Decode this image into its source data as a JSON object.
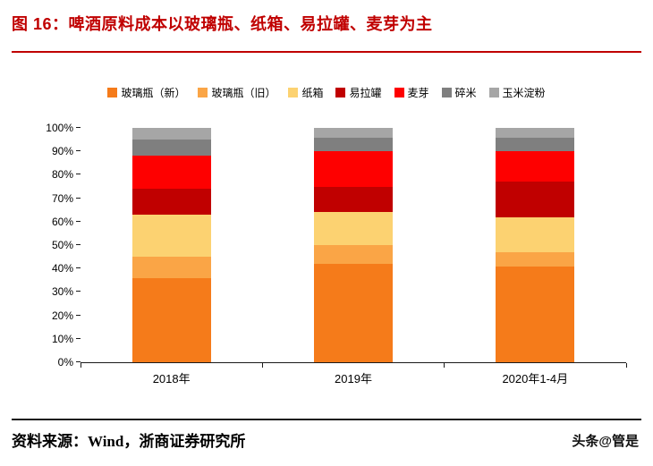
{
  "header": {
    "title": "图 16：啤酒原料成本以玻璃瓶、纸箱、易拉罐、麦芽为主"
  },
  "footer": {
    "source": "资料来源：Wind，浙商证券研究所",
    "watermark": "头条@管是"
  },
  "colors": {
    "accent": "#c00000",
    "axis": "#1a1a1a"
  },
  "chart_data": {
    "type": "bar",
    "stacked": true,
    "percent_stacked": true,
    "title": "",
    "xlabel": "",
    "ylabel": "",
    "ylim": [
      0,
      100
    ],
    "grid": false,
    "legend_position": "top",
    "categories": [
      "2018年",
      "2019年",
      "2020年1-4月"
    ],
    "yticks": [
      "0%",
      "10%",
      "20%",
      "30%",
      "40%",
      "50%",
      "60%",
      "70%",
      "80%",
      "90%",
      "100%"
    ],
    "series": [
      {
        "name": "玻璃瓶（新）",
        "color": "#f57b1a",
        "values": [
          36,
          42,
          41
        ]
      },
      {
        "name": "玻璃瓶（旧）",
        "color": "#faa546",
        "values": [
          9,
          8,
          6
        ]
      },
      {
        "name": "纸箱",
        "color": "#fcd271",
        "values": [
          18,
          14,
          15
        ]
      },
      {
        "name": "易拉罐",
        "color": "#c00000",
        "values": [
          11,
          11,
          15
        ]
      },
      {
        "name": "麦芽",
        "color": "#fe0000",
        "values": [
          14,
          15,
          13
        ]
      },
      {
        "name": "碎米",
        "color": "#7f7f7f",
        "values": [
          7,
          6,
          6
        ]
      },
      {
        "name": "玉米淀粉",
        "color": "#a6a6a6",
        "values": [
          5,
          4,
          4
        ]
      }
    ]
  }
}
